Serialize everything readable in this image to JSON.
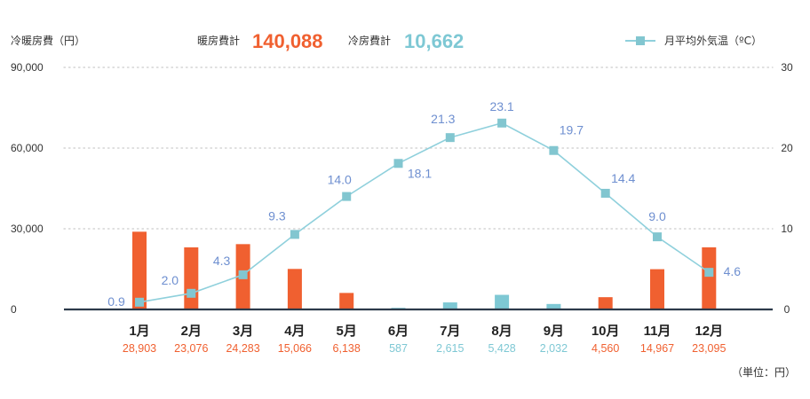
{
  "header": {
    "left_axis_title": "冷暖房費（円）",
    "heating_total_label": "暖房費計",
    "heating_total_value": "140,088",
    "cooling_total_label": "冷房費計",
    "cooling_total_value": "10,662",
    "legend_label": "月平均外気温（ºC）",
    "unit_note": "（単位：円）"
  },
  "colors": {
    "heating": "#f06030",
    "cooling": "#7ec8d4",
    "temp_line": "#8fd0dc",
    "temp_marker": "#82c6d0",
    "temp_label": "#6e8fd0",
    "grid": "#cccccc",
    "baseline": "#2d3a4a"
  },
  "chart_data": {
    "type": "bar",
    "categories": [
      "1月",
      "2月",
      "3月",
      "4月",
      "5月",
      "6月",
      "7月",
      "8月",
      "9月",
      "10月",
      "11月",
      "12月"
    ],
    "y_left_ticks": [
      "0",
      "30,000",
      "60,000",
      "90,000"
    ],
    "y_right_ticks": [
      "0",
      "10",
      "20",
      "30"
    ],
    "ylim_left": [
      0,
      90000
    ],
    "ylim_right": [
      0,
      30
    ],
    "grid": true,
    "legend_position": "top-right",
    "series": [
      {
        "name": "暖房費",
        "kind": "bar",
        "axis": "left",
        "values": [
          28903,
          23076,
          24283,
          15066,
          6138,
          null,
          null,
          null,
          null,
          4560,
          14967,
          23095
        ]
      },
      {
        "name": "冷房費",
        "kind": "bar",
        "axis": "left",
        "values": [
          null,
          null,
          null,
          null,
          null,
          587,
          2615,
          5428,
          2032,
          null,
          null,
          null
        ]
      },
      {
        "name": "月平均外気温（ºC）",
        "kind": "line",
        "axis": "right",
        "values": [
          0.9,
          2.0,
          4.3,
          9.3,
          14.0,
          18.1,
          21.3,
          23.1,
          19.7,
          14.4,
          9.0,
          4.6
        ]
      }
    ],
    "cost_labels": [
      "28,903",
      "23,076",
      "24,283",
      "15,066",
      "6,138",
      "587",
      "2,615",
      "5,428",
      "2,032",
      "4,560",
      "14,967",
      "23,095"
    ],
    "cost_label_types": [
      "heating",
      "heating",
      "heating",
      "heating",
      "heating",
      "cooling",
      "cooling",
      "cooling",
      "cooling",
      "heating",
      "heating",
      "heating"
    ],
    "temp_labels": [
      "0.9",
      "2.0",
      "4.3",
      "9.3",
      "14.0",
      "18.1",
      "21.3",
      "23.1",
      "19.7",
      "14.4",
      "9.0",
      "4.6"
    ]
  }
}
